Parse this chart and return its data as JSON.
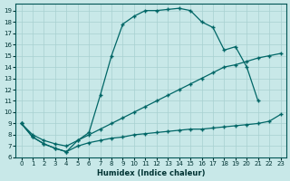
{
  "xlabel": "Humidex (Indice chaleur)",
  "bg_color": "#c8e8e8",
  "line_color": "#006666",
  "grid_color": "#a8d0d0",
  "xlim": [
    -0.5,
    23.5
  ],
  "ylim": [
    6,
    19.6
  ],
  "xticks": [
    0,
    1,
    2,
    3,
    4,
    5,
    6,
    7,
    8,
    9,
    10,
    11,
    12,
    13,
    14,
    15,
    16,
    17,
    18,
    19,
    20,
    21,
    22,
    23
  ],
  "yticks": [
    6,
    7,
    8,
    9,
    10,
    11,
    12,
    13,
    14,
    15,
    16,
    17,
    18,
    19
  ],
  "line1_x": [
    0,
    1,
    2,
    3,
    4,
    5,
    6,
    7,
    8,
    9,
    10,
    11,
    12,
    13,
    14,
    15,
    16,
    17,
    18,
    19,
    20,
    21
  ],
  "line1_y": [
    9,
    7.8,
    7.2,
    6.8,
    6.5,
    7.5,
    8.2,
    11.5,
    15.0,
    17.8,
    18.5,
    19.0,
    19.0,
    19.1,
    19.2,
    19.0,
    18.0,
    17.5,
    15.5,
    15.8,
    14.0,
    11.0
  ],
  "line2_x": [
    0,
    1,
    2,
    3,
    4,
    5,
    6,
    7,
    8,
    9,
    10,
    11,
    12,
    13,
    14,
    15,
    16,
    17,
    18,
    19,
    20,
    21,
    22,
    23
  ],
  "line2_y": [
    9,
    8.0,
    7.5,
    7.2,
    7.0,
    7.5,
    8.0,
    8.5,
    9.0,
    9.5,
    10.0,
    10.5,
    11.0,
    11.5,
    12.0,
    12.5,
    13.0,
    13.5,
    14.0,
    14.2,
    14.5,
    14.8,
    15.0,
    15.2
  ],
  "line3_x": [
    0,
    1,
    2,
    3,
    4,
    5,
    6,
    7,
    8,
    9,
    10,
    11,
    12,
    13,
    14,
    15,
    16,
    17,
    18,
    19,
    20,
    21,
    22,
    23
  ],
  "line3_y": [
    9,
    7.8,
    7.2,
    6.8,
    6.5,
    7.0,
    7.3,
    7.5,
    7.7,
    7.8,
    8.0,
    8.1,
    8.2,
    8.3,
    8.4,
    8.5,
    8.5,
    8.6,
    8.7,
    8.8,
    8.9,
    9.0,
    9.2,
    9.8
  ]
}
